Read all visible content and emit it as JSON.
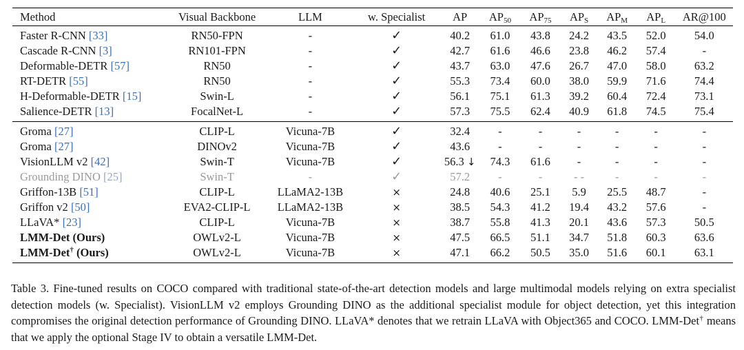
{
  "table": {
    "header": {
      "method": "Method",
      "backbone": "Visual Backbone",
      "llm": "LLM",
      "specialist": "w. Specialist",
      "ap": "AP",
      "ap50": "AP",
      "ap50_sub": "50",
      "ap75": "AP",
      "ap75_sub": "75",
      "aps": "AP",
      "aps_sub": "S",
      "apm": "AP",
      "apm_sub": "M",
      "apl": "AP",
      "apl_sub": "L",
      "ar100": "AR@100"
    },
    "rows": [
      {
        "name": "Faster R-CNN",
        "ref": "[33]",
        "backbone": "RN50-FPN",
        "llm": "-",
        "spec": "✓",
        "ap": "40.2",
        "ap50": "61.0",
        "ap75": "43.8",
        "aps": "24.2",
        "apm": "43.5",
        "apl": "52.0",
        "ar": "54.0"
      },
      {
        "name": "Cascade R-CNN",
        "ref": "[3]",
        "backbone": "RN101-FPN",
        "llm": "-",
        "spec": "✓",
        "ap": "42.7",
        "ap50": "61.6",
        "ap75": "46.6",
        "aps": "23.8",
        "apm": "46.2",
        "apl": "57.4",
        "ar": "-"
      },
      {
        "name": "Deformable-DETR",
        "ref": "[57]",
        "backbone": "RN50",
        "llm": "-",
        "spec": "✓",
        "ap": "43.7",
        "ap50": "63.0",
        "ap75": "47.6",
        "aps": "26.7",
        "apm": "47.0",
        "apl": "58.0",
        "ar": "63.2"
      },
      {
        "name": "RT-DETR",
        "ref": "[55]",
        "backbone": "RN50",
        "llm": "-",
        "spec": "✓",
        "ap": "55.3",
        "ap50": "73.4",
        "ap75": "60.0",
        "aps": "38.0",
        "apm": "59.9",
        "apl": "71.6",
        "ar": "74.4"
      },
      {
        "name": "H-Deformable-DETR",
        "ref": "[15]",
        "backbone": "Swin-L",
        "llm": "-",
        "spec": "✓",
        "ap": "56.1",
        "ap50": "75.1",
        "ap75": "61.3",
        "aps": "39.2",
        "apm": "60.4",
        "apl": "72.4",
        "ar": "73.1"
      },
      {
        "name": "Salience-DETR",
        "ref": "[13]",
        "backbone": "FocalNet-L",
        "llm": "-",
        "spec": "✓",
        "ap": "57.3",
        "ap50": "75.5",
        "ap75": "62.4",
        "aps": "40.9",
        "apm": "61.8",
        "apl": "74.5",
        "ar": "75.4"
      },
      {
        "name": "Groma",
        "ref": "[27]",
        "backbone": "CLIP-L",
        "llm": "Vicuna-7B",
        "spec": "✓",
        "ap": "32.4",
        "ap50": "-",
        "ap75": "-",
        "aps": "-",
        "apm": "-",
        "apl": "-",
        "ar": "-"
      },
      {
        "name": "Groma",
        "ref": "[27]",
        "backbone": "DINOv2",
        "llm": "Vicuna-7B",
        "spec": "✓",
        "ap": "43.6",
        "ap50": "-",
        "ap75": "-",
        "aps": "-",
        "apm": "-",
        "apl": "-",
        "ar": "-"
      },
      {
        "name": "VisionLLM v2",
        "ref": "[42]",
        "backbone": "Swin-T",
        "llm": "Vicuna-7B",
        "spec": "✓",
        "ap": "56.3",
        "ap_arrow": "↓",
        "ap50": "74.3",
        "ap75": "61.6",
        "aps": "-",
        "apm": "-",
        "apl": "-",
        "ar": "-"
      },
      {
        "name": "Grounding DINO",
        "ref": "[25]",
        "backbone": "Swin-T",
        "llm": "-",
        "spec": "✓",
        "ap": "57.2",
        "ap50": "-",
        "ap75": "-",
        "aps": "- -",
        "apm": "-",
        "apl": "-",
        "ar": "-"
      },
      {
        "name": "Griffon-13B",
        "ref": "[51]",
        "backbone": "CLIP-L",
        "llm": "LLaMA2-13B",
        "spec": "×",
        "ap": "24.8",
        "ap50": "40.6",
        "ap75": "25.1",
        "aps": "5.9",
        "apm": "25.5",
        "apl": "48.7",
        "ar": "-"
      },
      {
        "name": "Griffon v2",
        "ref": "[50]",
        "backbone": "EVA2-CLIP-L",
        "llm": "LLaMA2-13B",
        "spec": "×",
        "ap": "38.5",
        "ap50": "54.3",
        "ap75": "41.2",
        "aps": "19.4",
        "apm": "43.2",
        "apl": "57.6",
        "ar": "-"
      },
      {
        "name": "LLaVA*",
        "ref": "[23]",
        "backbone": "CLIP-L",
        "llm": "Vicuna-7B",
        "spec": "×",
        "ap": "38.7",
        "ap50": "55.8",
        "ap75": "41.3",
        "aps": "20.1",
        "apm": "43.6",
        "apl": "57.3",
        "ar": "50.5"
      },
      {
        "name": "LMM-Det (Ours)",
        "backbone": "OWLv2-L",
        "llm": "Vicuna-7B",
        "spec": "×",
        "ap": "47.5",
        "ap50": "66.5",
        "ap75": "51.1",
        "aps": "34.7",
        "apm": "51.8",
        "apl": "60.3",
        "ar": "63.6"
      },
      {
        "name": "LMM-Det",
        "name_sup": "†",
        "name_suffix": " (Ours)",
        "backbone": "OWLv2-L",
        "llm": "Vicuna-7B",
        "spec": "×",
        "ap": "47.1",
        "ap50": "66.2",
        "ap75": "50.5",
        "aps": "35.0",
        "apm": "51.6",
        "apl": "60.1",
        "ar": "63.1"
      }
    ]
  },
  "caption": {
    "part1": "Table 3. Fine-tuned results on COCO compared with traditional state-of-the-art detection models and large multimodal models relying on extra specialist detection models (w. Specialist). VisionLLM v2 employs Grounding DINO as the additional specialist module for object detection, yet this integration compromises the original detection performance of Grounding DINO. LLaVA* denotes that we retrain LLaVA with Object365 and COCO. LMM-Det",
    "sup": "†",
    "part2": " means that we apply the optional Stage IV to obtain a versatile LMM-Det."
  }
}
